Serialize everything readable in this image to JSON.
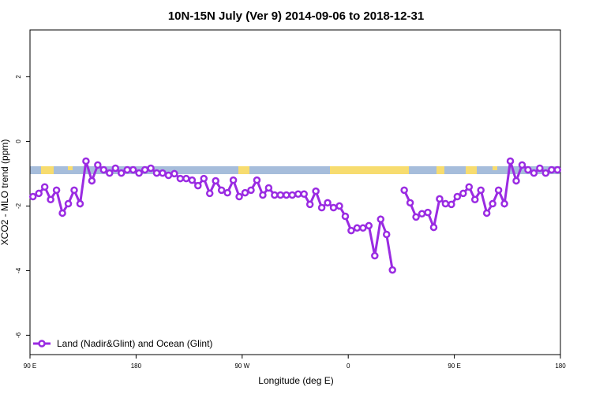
{
  "chart_data": {
    "type": "line",
    "title": "10N-15N July (Ver 9)   2014-09-06 to 2018-12-31",
    "x_label": "Longitude (deg E)",
    "y_label": "XCO2 - MLO trend (ppm)",
    "xlim": [
      90,
      540
    ],
    "ylim": [
      -6.6,
      3.45
    ],
    "xticks": [
      {
        "value": 90,
        "label": "90 E"
      },
      180,
      {
        "value": 270,
        "label": "90 W"
      },
      {
        "value": 360,
        "label": "0"
      },
      {
        "value": 450,
        "label": "90 E"
      },
      {
        "value": 540,
        "label": "180"
      }
    ],
    "yticks": [
      -6,
      -4,
      -2,
      0,
      2
    ],
    "legend_position": "bottom-left",
    "x": [
      92.5,
      97.5,
      102.5,
      107.5,
      112.5,
      117.5,
      122.5,
      127.5,
      132.5,
      137.5,
      142.5,
      147.5,
      152.5,
      157.5,
      162.5,
      167.5,
      172.5,
      177.5,
      182.5,
      187.5,
      192.5,
      197.5,
      202.5,
      207.5,
      212.5,
      217.5,
      222.5,
      227.5,
      232.5,
      237.5,
      242.5,
      247.5,
      252.5,
      257.5,
      262.5,
      267.5,
      272.5,
      277.5,
      282.5,
      287.5,
      292.5,
      297.5,
      302.5,
      307.5,
      312.5,
      317.5,
      322.5,
      327.5,
      332.5,
      337.5,
      342.5,
      347.5,
      352.5,
      357.5,
      362.5,
      367.5,
      372.5,
      377.5,
      382.5,
      387.5,
      392.5,
      397.5,
      402.5,
      407.5,
      412.5,
      417.5,
      422.5,
      427.5,
      432.5,
      437.5,
      442.5,
      447.5,
      452.5,
      457.5,
      462.5,
      467.5,
      472.5,
      477.5,
      482.5,
      487.5,
      492.5,
      497.5,
      502.5,
      507.5,
      512.5,
      517.5,
      522.5,
      527.5,
      532.5,
      537.5
    ],
    "series": [
      {
        "name": "Land (Nadir&Glint) and Ocean (Glint)",
        "color": "#9a2be2",
        "values": [
          -1.71,
          -1.61,
          -1.41,
          -1.8,
          -1.51,
          -2.22,
          -1.93,
          -1.51,
          -1.93,
          -0.61,
          -1.22,
          -0.73,
          -0.88,
          -0.98,
          -0.83,
          -0.98,
          -0.88,
          -0.88,
          -0.98,
          -0.88,
          -0.83,
          -0.98,
          -0.98,
          -1.05,
          -1.0,
          -1.15,
          -1.15,
          -1.2,
          -1.37,
          -1.15,
          -1.61,
          -1.22,
          -1.51,
          -1.59,
          -1.2,
          -1.71,
          -1.59,
          -1.51,
          -1.2,
          -1.66,
          -1.44,
          -1.66,
          -1.66,
          -1.66,
          -1.66,
          -1.63,
          -1.63,
          -1.95,
          -1.54,
          -2.05,
          -1.9,
          -2.05,
          -2.0,
          -2.32,
          -2.76,
          -2.68,
          -2.68,
          -2.61,
          -3.54,
          -2.41,
          -2.88,
          -3.98,
          null,
          -1.51,
          -1.9,
          -2.34,
          -2.24,
          -2.2,
          -2.66,
          -1.78,
          -1.93,
          -1.95,
          -1.71,
          -1.61,
          -1.41,
          -1.8,
          -1.51,
          -2.22,
          -1.93,
          -1.51,
          -1.93,
          -0.61,
          -1.22,
          -0.73,
          -0.88,
          -0.98,
          -0.83,
          -0.98,
          -0.88,
          -0.88
        ]
      }
    ]
  }
}
